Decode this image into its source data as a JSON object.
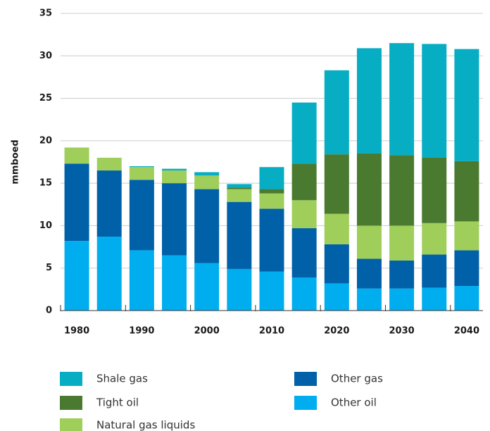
{
  "chart_data": {
    "type": "stacked_bar",
    "y_label": "mmboed",
    "categories": [
      "1980",
      null,
      "1990",
      null,
      "2000",
      null,
      "2010",
      null,
      "2020",
      null,
      "2030",
      null,
      "2040"
    ],
    "series": [
      {
        "name": "Other oil",
        "color": "#00aeef",
        "values": [
          8.2,
          8.7,
          7.1,
          6.5,
          5.6,
          4.9,
          4.6,
          3.9,
          3.2,
          2.6,
          2.6,
          2.7,
          2.9
        ]
      },
      {
        "name": "Other gas",
        "color": "#0060a8",
        "values": [
          9.1,
          7.8,
          8.3,
          8.5,
          8.7,
          7.9,
          7.4,
          5.8,
          4.6,
          3.5,
          3.3,
          3.9,
          4.2
        ]
      },
      {
        "name": "Natural gas liquids",
        "color": "#9fce5a",
        "values": [
          1.9,
          1.5,
          1.5,
          1.5,
          1.6,
          1.5,
          1.8,
          3.3,
          3.6,
          3.9,
          4.1,
          3.7,
          3.4
        ]
      },
      {
        "name": "Tight oil",
        "color": "#4a7a2f",
        "values": [
          0,
          0,
          0,
          0,
          0,
          0.2,
          0.5,
          4.3,
          7.0,
          8.5,
          8.3,
          7.7,
          7.1
        ]
      },
      {
        "name": "Shale gas",
        "color": "#07adc3",
        "values": [
          0,
          0,
          0.1,
          0.2,
          0.4,
          0.4,
          2.6,
          7.2,
          9.9,
          12.4,
          13.2,
          13.4,
          13.2
        ]
      }
    ],
    "ylim": [
      0,
      35
    ],
    "yticks": [
      0,
      5,
      10,
      15,
      20,
      25,
      30,
      35
    ],
    "grid": true
  }
}
